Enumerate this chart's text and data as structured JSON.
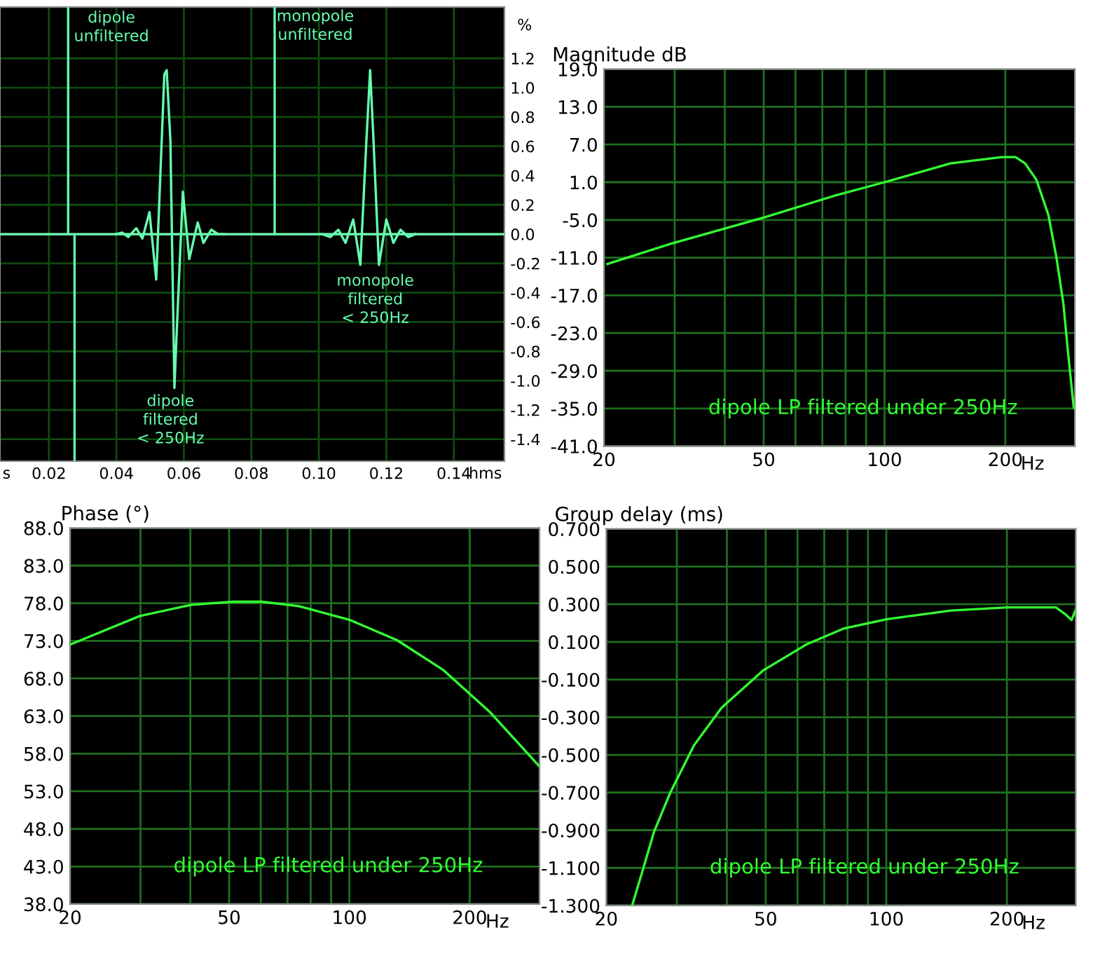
{
  "chart_data": [
    {
      "type": "line",
      "xlabel": "hms",
      "ylabel": "%",
      "xlim": [
        0.0055,
        0.155
      ],
      "xticks": [
        0.02,
        0.04,
        0.06,
        0.08,
        {
          "value": 0.1,
          "label": "0.10"
        },
        0.12,
        0.14
      ],
      "ylim": [
        -1.55,
        1.55
      ],
      "yticks": [
        -1.4,
        -1.2,
        {
          "value": -1,
          "label": "-1.0"
        },
        -0.8,
        -0.6,
        -0.4,
        -0.2,
        {
          "value": 0,
          "label": "0.0"
        },
        0.2,
        0.4,
        0.6,
        0.8,
        {
          "value": 1,
          "label": "1.0"
        },
        1.2
      ],
      "grid": true,
      "ref_lines": [
        {
          "axis": "y",
          "value": 0,
          "color": "#b03030"
        }
      ],
      "series": [
        {
          "color": "#66ffb0",
          "x": [
            0.0055,
            0.0257,
            0.0257,
            0.0257,
            0.0276,
            0.0276,
            0.0276,
            0.155
          ],
          "values": [
            0,
            0,
            1.55,
            0,
            0,
            -1.55,
            0,
            0
          ]
        },
        {
          "color": "#66ffb0",
          "x": [
            0.0869,
            0.0869
          ],
          "values": [
            0,
            1.55
          ]
        },
        {
          "color": "#66ffb0",
          "x": [
            0.0398,
            0.0417,
            0.0435,
            0.0459,
            0.0477,
            0.0498,
            0.0518,
            0.0542,
            0.0549,
            0.056,
            0.0572,
            0.058,
            0.0597,
            0.0616,
            0.0641,
            0.0658,
            0.0681,
            0.0702,
            0.0719
          ],
          "values": [
            0,
            0.01,
            -0.02,
            0.04,
            -0.03,
            0.15,
            -0.31,
            1.09,
            1.12,
            0.64,
            -1.05,
            -0.6,
            0.29,
            -0.17,
            0.08,
            -0.06,
            0.03,
            0,
            0
          ]
        },
        {
          "color": "#66ffb0",
          "x": [
            0.1009,
            0.1034,
            0.1058,
            0.1079,
            0.1102,
            0.1123,
            0.1141,
            0.1152,
            0.1162,
            0.1178,
            0.12,
            0.1221,
            0.1242,
            0.1265,
            0.1286
          ],
          "values": [
            0,
            -0.02,
            0.03,
            -0.06,
            0.1,
            -0.21,
            0.64,
            1.12,
            0.64,
            -0.21,
            0.1,
            -0.06,
            0.03,
            -0.02,
            0
          ]
        }
      ],
      "annotations": [
        "s",
        "dipole\nunfiltered",
        "monopole\nunfiltered",
        "monopole\nfiltered\n< 250Hz",
        "dipole\nfiltered\n< 250Hz"
      ]
    },
    {
      "type": "line",
      "log": "x",
      "ylabel": "Magnitude dB",
      "xlabel": "Hz",
      "xlim": [
        20,
        298
      ],
      "xticks": [
        20,
        {
          "value": 30,
          "label": null
        },
        {
          "value": 40,
          "label": null
        },
        50,
        {
          "value": 60,
          "label": null
        },
        {
          "value": 70,
          "label": null
        },
        {
          "value": 80,
          "label": null
        },
        {
          "value": 90,
          "label": null
        },
        100,
        200
      ],
      "ylim": [
        -41,
        19
      ],
      "yticks": [
        {
          "value": -41,
          "label": "-41.0"
        },
        {
          "value": -35,
          "label": "-35.0"
        },
        {
          "value": -29,
          "label": "-29.0"
        },
        {
          "value": -23,
          "label": "-23.0"
        },
        {
          "value": -17,
          "label": "-17.0"
        },
        {
          "value": -11,
          "label": "-11.0"
        },
        {
          "value": -5,
          "label": "-5.0"
        },
        {
          "value": 1,
          "label": "1.0"
        },
        {
          "value": 7,
          "label": "7.0"
        },
        {
          "value": 13,
          "label": "13.0"
        },
        {
          "value": 19,
          "label": "19.0"
        }
      ],
      "grid": true,
      "series": [
        {
          "color": "#33ff33",
          "x": [
            20.4,
            29.3,
            50.2,
            74.6,
            100,
            146,
            196,
            212,
            224,
            239,
            256,
            268,
            279,
            287,
            296,
            298
          ],
          "values": [
            -12.0,
            -8.8,
            -4.6,
            -1.2,
            1.0,
            4.0,
            5.0,
            5.0,
            4.0,
            1.4,
            -4.2,
            -10.9,
            -18.3,
            -26.5,
            -34.8,
            -35.0
          ]
        }
      ],
      "annotations": [
        "dipole LP filtered under 250Hz"
      ]
    },
    {
      "type": "line",
      "log": "x",
      "ylabel": "Phase (°)",
      "xlabel": "Hz",
      "xlim": [
        20,
        299
      ],
      "xticks": [
        20,
        {
          "value": 30,
          "label": null
        },
        {
          "value": 40,
          "label": null
        },
        50,
        {
          "value": 60,
          "label": null
        },
        {
          "value": 70,
          "label": null
        },
        {
          "value": 80,
          "label": null
        },
        {
          "value": 90,
          "label": null
        },
        100,
        200
      ],
      "ylim": [
        38,
        88
      ],
      "yticks": [
        {
          "value": 38,
          "label": "38.0"
        },
        {
          "value": 43,
          "label": "43.0"
        },
        {
          "value": 48,
          "label": "48.0"
        },
        {
          "value": 53,
          "label": "53.0"
        },
        {
          "value": 58,
          "label": "58.0"
        },
        {
          "value": 63,
          "label": "63.0"
        },
        {
          "value": 68,
          "label": "68.0"
        },
        {
          "value": 73,
          "label": "73.0"
        },
        {
          "value": 78,
          "label": "78.0"
        },
        {
          "value": 83,
          "label": "83.0"
        },
        {
          "value": 88,
          "label": "88.0"
        }
      ],
      "grid": true,
      "series": [
        {
          "color": "#33ff33",
          "x": [
            20,
            29.9,
            40.3,
            51.3,
            60.3,
            74.8,
            100,
            131.5,
            172,
            225,
            299
          ],
          "values": [
            72.5,
            76.3,
            77.8,
            78.2,
            78.2,
            77.6,
            75.8,
            73.1,
            69.1,
            63.5,
            56.3
          ]
        }
      ],
      "annotations": [
        "dipole LP filtered under 250Hz"
      ]
    },
    {
      "type": "line",
      "log": "x",
      "ylabel": "Group delay (ms)",
      "xlabel": "Hz",
      "xlim": [
        20,
        297
      ],
      "xticks": [
        20,
        {
          "value": 30,
          "label": null
        },
        {
          "value": 40,
          "label": null
        },
        50,
        {
          "value": 60,
          "label": null
        },
        {
          "value": 70,
          "label": null
        },
        {
          "value": 80,
          "label": null
        },
        {
          "value": 90,
          "label": null
        },
        100,
        200
      ],
      "ylim": [
        -1.3,
        0.7
      ],
      "yticks": [
        {
          "value": -1.3,
          "label": "-1.300"
        },
        {
          "value": -1.1,
          "label": "-1.100"
        },
        {
          "value": -0.9,
          "label": "-0.900"
        },
        {
          "value": -0.7,
          "label": "-0.700"
        },
        {
          "value": -0.5,
          "label": "-0.500"
        },
        {
          "value": -0.3,
          "label": "-0.300"
        },
        {
          "value": -0.1,
          "label": "-0.100"
        },
        {
          "value": 0.1,
          "label": "0.100"
        },
        {
          "value": 0.3,
          "label": "0.300"
        },
        {
          "value": 0.5,
          "label": "0.500"
        },
        {
          "value": 0.7,
          "label": "0.700"
        }
      ],
      "grid": true,
      "series": [
        {
          "color": "#33ff33",
          "x": [
            23.2,
            24.6,
            26.3,
            28.9,
            33.1,
            38.8,
            49.4,
            63.0,
            78.1,
            100,
            145,
            200,
            265,
            280,
            290,
            297
          ],
          "values": [
            -1.3,
            -1.12,
            -0.91,
            -0.7,
            -0.45,
            -0.25,
            -0.05,
            0.085,
            0.17,
            0.22,
            0.266,
            0.283,
            0.283,
            0.246,
            0.216,
            0.271
          ]
        }
      ],
      "annotations": [
        "dipole LP filtered under 250Hz"
      ]
    }
  ]
}
